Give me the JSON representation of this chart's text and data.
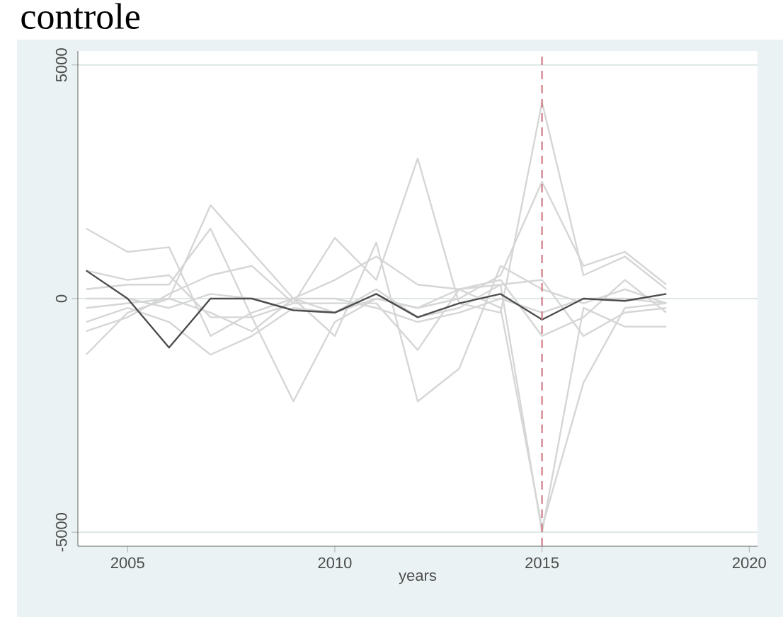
{
  "chart_data": {
    "type": "line",
    "title": "controle",
    "xlabel": "years",
    "x": [
      2004,
      2005,
      2006,
      2007,
      2008,
      2009,
      2010,
      2011,
      2012,
      2013,
      2014,
      2015,
      2016,
      2017,
      2018
    ],
    "series": [
      {
        "color": "#d6d6d6",
        "values": [
          1500,
          1000,
          1100,
          -800,
          -300,
          0,
          400,
          900,
          300,
          200,
          -200,
          -4900,
          -1800,
          -200,
          -100
        ]
      },
      {
        "color": "#d6d6d6",
        "values": [
          -1200,
          -300,
          0,
          2000,
          1000,
          0,
          -300,
          200,
          -400,
          -200,
          300,
          -5000,
          -200,
          -600,
          -600
        ]
      },
      {
        "color": "#d6d6d6",
        "values": [
          600,
          400,
          500,
          -400,
          -400,
          -100,
          1300,
          400,
          3000,
          -100,
          -300,
          4200,
          500,
          900,
          200
        ]
      },
      {
        "color": "#d6d6d6",
        "values": [
          200,
          300,
          300,
          1500,
          -400,
          -2200,
          -500,
          0,
          -200,
          0,
          500,
          2500,
          700,
          1000,
          300
        ]
      },
      {
        "color": "#d6d6d6",
        "values": [
          -200,
          -100,
          0,
          -300,
          -700,
          0,
          -800,
          1200,
          -2200,
          -1500,
          700,
          200,
          -100,
          200,
          -100
        ]
      },
      {
        "color": "#d6d6d6",
        "values": [
          -700,
          -400,
          100,
          500,
          700,
          -100,
          -100,
          -100,
          -1100,
          200,
          400,
          -800,
          -400,
          400,
          -300
        ]
      },
      {
        "color": "#d6d6d6",
        "values": [
          -500,
          -200,
          -500,
          -1200,
          -800,
          -200,
          -300,
          0,
          -200,
          200,
          300,
          400,
          -800,
          -300,
          -200
        ]
      },
      {
        "color": "#d6d6d6",
        "values": [
          0,
          0,
          -200,
          100,
          0,
          0,
          0,
          -200,
          -500,
          -300,
          0,
          -300,
          0,
          0,
          -100
        ]
      },
      {
        "color": "#4d4d4d",
        "values": [
          600,
          0,
          -1050,
          0,
          0,
          -250,
          -300,
          100,
          -400,
          -100,
          100,
          -450,
          0,
          -50,
          100
        ]
      }
    ],
    "xlim": [
      2003.8,
      2020.2
    ],
    "ylim": [
      -5300,
      5300
    ],
    "xticks": [
      2005,
      2010,
      2015,
      2020
    ],
    "yticks": [
      -5000,
      0,
      5000
    ],
    "ref_lines": [
      {
        "axis": "x",
        "value": 2015,
        "color": "#c9707a",
        "line_style": "dashed"
      }
    ],
    "grid": "y",
    "marker": "none",
    "line_style": "solid"
  }
}
